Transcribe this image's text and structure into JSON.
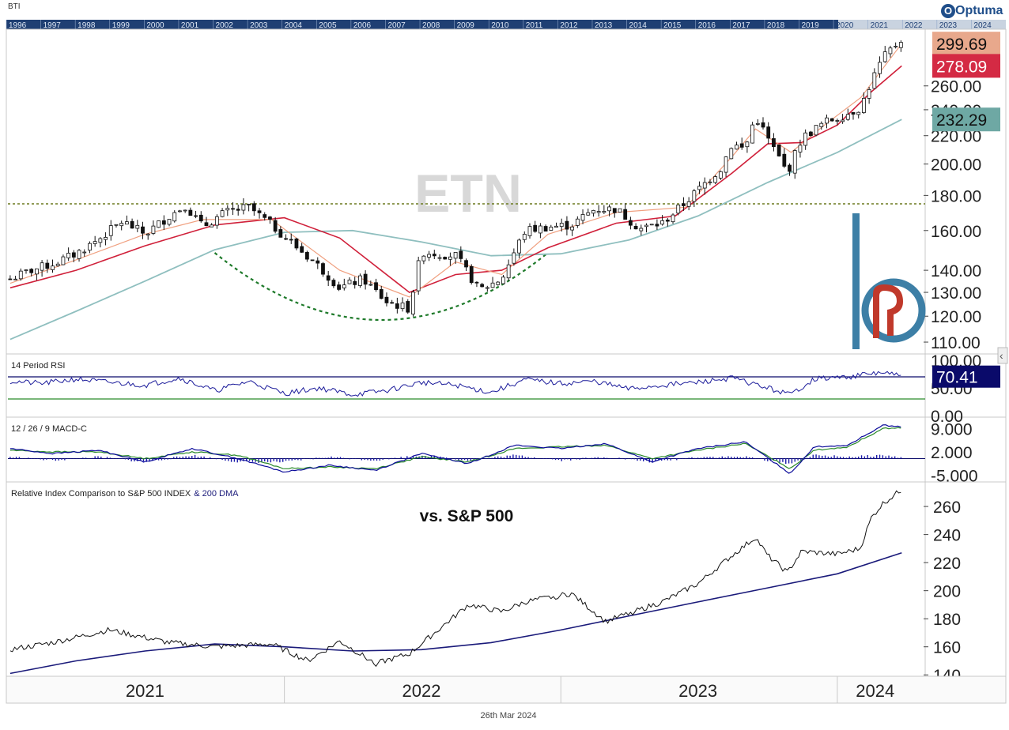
{
  "header": {
    "corner_label": "BTI",
    "brand": "Optuma"
  },
  "timeline_years": [
    "1996",
    "1997",
    "1998",
    "1999",
    "2000",
    "2001",
    "2002",
    "2003",
    "2004",
    "2005",
    "2006",
    "2007",
    "2008",
    "2009",
    "2010",
    "2011",
    "2012",
    "2013",
    "2014",
    "2015",
    "2016",
    "2017",
    "2018",
    "2019",
    "2020",
    "2021",
    "2022",
    "2023",
    "2024"
  ],
  "colors": {
    "price": "#111111",
    "ma_short": "#f0a080",
    "ma_mid": "#d0203a",
    "ma_long": "#8fbfbf",
    "resistance": "#6b7a1f",
    "base_arc": "#1e7a2a",
    "rsi": "#1a1a9a",
    "rsi_upper": "#0a0a6a",
    "rsi_lower": "#2a8a2a",
    "macd": "#0a0a9a",
    "signal": "#2a8a2a",
    "hist": "#1a1aaa",
    "relative": "#111111",
    "relative_dma": "#1a1a7a",
    "logo": "#3d7fa6",
    "logo_accent": "#c0392b"
  },
  "chart_data": [
    {
      "type": "line",
      "panel": "price",
      "watermark": "ETN",
      "y_ticks": [
        "110.00",
        "120.00",
        "130.00",
        "140.00",
        "160.00",
        "180.00",
        "200.00",
        "220.00",
        "240.00",
        "260.00"
      ],
      "ylim": [
        106,
        312
      ],
      "x_range": [
        "2021-01-01",
        "2024-03-26"
      ],
      "resistance_level": 175,
      "value_badges": [
        {
          "label": "299.69",
          "bg": "#e8a88c",
          "fg": "#111111"
        },
        {
          "label": "278.09",
          "bg": "#d42a44",
          "fg": "#ffffff"
        },
        {
          "label": "232.29",
          "bg": "#6ea8a4",
          "fg": "#111111"
        }
      ],
      "series": [
        {
          "role": "price",
          "x": [
            "2021-01-04",
            "2021-02-01",
            "2021-03-01",
            "2021-04-01",
            "2021-05-03",
            "2021-06-01",
            "2021-07-01",
            "2021-08-02",
            "2021-08-23",
            "2021-09-15",
            "2021-10-15",
            "2021-11-15",
            "2021-12-15",
            "2022-01-15",
            "2022-02-15",
            "2022-03-15",
            "2022-04-15",
            "2022-05-15",
            "2022-06-15",
            "2022-07-01",
            "2022-08-15",
            "2022-09-15",
            "2022-10-15",
            "2022-11-15",
            "2022-12-15",
            "2023-01-15",
            "2023-02-15",
            "2023-03-15",
            "2023-04-15",
            "2023-05-15",
            "2023-06-15",
            "2023-07-31",
            "2023-08-15",
            "2023-09-01",
            "2023-09-15",
            "2023-10-01",
            "2023-10-27",
            "2023-11-15",
            "2023-12-15",
            "2024-01-15",
            "2024-02-01",
            "2024-02-15",
            "2024-03-01",
            "2024-03-26"
          ],
          "values": [
            136,
            140,
            143,
            148,
            156,
            165,
            158,
            168,
            174,
            162,
            170,
            173,
            163,
            152,
            142,
            132,
            136,
            126,
            123,
            149,
            147,
            131,
            136,
            160,
            162,
            163,
            172,
            172,
            161,
            164,
            176,
            197,
            214,
            210,
            235,
            218,
            194,
            218,
            230,
            237,
            242,
            264,
            285,
            305
          ]
        },
        {
          "role": "ma_short",
          "x": [
            "2021-01-04",
            "2021-04-01",
            "2021-07-01",
            "2021-09-15",
            "2021-12-15",
            "2022-03-15",
            "2022-06-15",
            "2022-08-15",
            "2022-10-15",
            "2022-12-15",
            "2023-03-15",
            "2023-06-15",
            "2023-08-15",
            "2023-09-15",
            "2023-11-01",
            "2023-12-15",
            "2024-02-01",
            "2024-03-26"
          ],
          "values": [
            134,
            145,
            158,
            166,
            166,
            140,
            128,
            144,
            138,
            158,
            170,
            173,
            205,
            225,
            208,
            228,
            250,
            299.69
          ]
        },
        {
          "role": "ma_mid",
          "x": [
            "2021-01-04",
            "2021-04-01",
            "2021-07-01",
            "2021-10-01",
            "2022-01-01",
            "2022-03-15",
            "2022-06-15",
            "2022-08-15",
            "2022-10-15",
            "2022-12-15",
            "2023-03-15",
            "2023-06-01",
            "2023-08-15",
            "2023-10-01",
            "2023-11-15",
            "2024-01-01",
            "2024-02-15",
            "2024-03-26"
          ],
          "values": [
            132,
            140,
            152,
            163,
            167,
            156,
            130,
            138,
            140,
            151,
            164,
            168,
            194,
            214,
            215,
            228,
            255,
            278.09
          ]
        },
        {
          "role": "ma_long",
          "x": [
            "2021-01-04",
            "2021-04-01",
            "2021-07-01",
            "2021-10-01",
            "2022-01-01",
            "2022-04-01",
            "2022-07-01",
            "2022-10-01",
            "2023-01-01",
            "2023-04-01",
            "2023-07-01",
            "2023-10-01",
            "2024-01-01",
            "2024-03-26"
          ],
          "values": [
            111,
            122,
            135,
            150,
            159,
            160,
            154,
            147,
            148,
            155,
            168,
            188,
            208,
            232.29
          ]
        }
      ]
    },
    {
      "type": "line",
      "panel": "rsi",
      "title": "14 Period RSI",
      "y_ticks": [
        "0.00",
        "50.00",
        "100.00"
      ],
      "ylim": [
        0,
        100
      ],
      "reference_lines": [
        70,
        30
      ],
      "value_badge": {
        "label": "70.41",
        "bg": "#0a0a6a",
        "fg": "#ffffff"
      },
      "x": [
        "2021-01-04",
        "2021-02-15",
        "2021-04-01",
        "2021-05-15",
        "2021-07-01",
        "2021-08-15",
        "2021-10-01",
        "2021-11-15",
        "2022-01-01",
        "2022-02-15",
        "2022-04-01",
        "2022-05-15",
        "2022-07-01",
        "2022-08-15",
        "2022-10-01",
        "2022-11-15",
        "2023-01-01",
        "2023-02-15",
        "2023-04-01",
        "2023-05-15",
        "2023-07-01",
        "2023-08-15",
        "2023-10-01",
        "2023-10-31",
        "2023-12-01",
        "2024-01-15",
        "2024-03-01",
        "2024-03-26"
      ],
      "values": [
        62,
        58,
        66,
        60,
        55,
        68,
        45,
        62,
        40,
        50,
        38,
        45,
        60,
        55,
        42,
        65,
        58,
        62,
        48,
        55,
        60,
        68,
        50,
        38,
        66,
        70,
        78,
        70.41
      ]
    },
    {
      "type": "line",
      "panel": "macd",
      "title": "12 / 26 / 9 MACD-C",
      "y_ticks": [
        "-5.000",
        "2.000",
        "9.000"
      ],
      "ylim": [
        -6.5,
        10.5
      ],
      "x": [
        "2021-01-04",
        "2021-03-01",
        "2021-05-01",
        "2021-07-01",
        "2021-09-01",
        "2021-11-01",
        "2022-01-01",
        "2022-03-01",
        "2022-05-01",
        "2022-07-01",
        "2022-09-01",
        "2022-11-01",
        "2023-01-01",
        "2023-03-01",
        "2023-05-01",
        "2023-07-01",
        "2023-09-01",
        "2023-10-31",
        "2023-12-01",
        "2024-01-15",
        "2024-03-01",
        "2024-03-26"
      ],
      "series": [
        {
          "role": "macd",
          "values": [
            3,
            1.5,
            2.5,
            -1,
            3,
            0,
            -4,
            -2,
            -3.5,
            1.5,
            -1.5,
            4,
            3,
            4.5,
            -1,
            3,
            5,
            -4.5,
            3.5,
            4,
            10,
            9.5
          ]
        },
        {
          "role": "signal",
          "values": [
            2.5,
            2,
            2,
            0,
            2,
            1,
            -3,
            -2.5,
            -3,
            0.5,
            -1,
            3,
            3.5,
            4,
            0,
            2.5,
            4.5,
            -3,
            2.5,
            3.5,
            9,
            9.2
          ]
        },
        {
          "role": "histogram",
          "values": [
            0.5,
            -0.5,
            0.5,
            -1,
            1,
            -1,
            -1,
            0.5,
            -0.5,
            1,
            -0.5,
            1,
            -0.5,
            0.5,
            -1,
            0.5,
            0.5,
            -1.5,
            1,
            0.5,
            1,
            0.3
          ]
        }
      ]
    },
    {
      "type": "line",
      "panel": "relative",
      "title": "Relative Index Comparison to S&P 500 INDEX",
      "title_suffix": "& 200 DMA",
      "annotation": "vs. S&P 500",
      "y_ticks": [
        "140",
        "160",
        "180",
        "200",
        "220",
        "240",
        "260"
      ],
      "ylim": [
        139,
        273
      ],
      "series": [
        {
          "role": "relative",
          "x": [
            "2021-01-04",
            "2021-03-01",
            "2021-05-15",
            "2021-08-01",
            "2021-10-01",
            "2021-12-15",
            "2022-02-01",
            "2022-03-15",
            "2022-05-01",
            "2022-06-15",
            "2022-08-01",
            "2022-09-01",
            "2022-10-15",
            "2022-11-15",
            "2023-01-15",
            "2023-03-01",
            "2023-05-15",
            "2023-07-01",
            "2023-08-15",
            "2023-09-15",
            "2023-10-01",
            "2023-10-27",
            "2023-11-15",
            "2024-01-01",
            "2024-01-31",
            "2024-02-15",
            "2024-03-01",
            "2024-03-26"
          ],
          "values": [
            158,
            163,
            172,
            163,
            160,
            162,
            150,
            164,
            148,
            155,
            176,
            190,
            185,
            192,
            198,
            178,
            192,
            205,
            225,
            238,
            225,
            213,
            228,
            226,
            230,
            252,
            262,
            272
          ]
        },
        {
          "role": "relative_dma",
          "x": [
            "2021-01-04",
            "2021-04-01",
            "2021-07-01",
            "2021-10-01",
            "2022-01-01",
            "2022-04-01",
            "2022-07-01",
            "2022-10-01",
            "2023-01-01",
            "2023-04-01",
            "2023-07-01",
            "2023-10-01",
            "2024-01-01",
            "2024-03-26"
          ],
          "values": [
            141,
            150,
            157,
            162,
            160,
            157,
            158,
            163,
            172,
            182,
            192,
            202,
            212,
            227
          ]
        }
      ]
    }
  ],
  "x_axis": {
    "year_labels": [
      "2021",
      "2022",
      "2023",
      "2024"
    ],
    "date_label": "26th Mar 2024"
  }
}
